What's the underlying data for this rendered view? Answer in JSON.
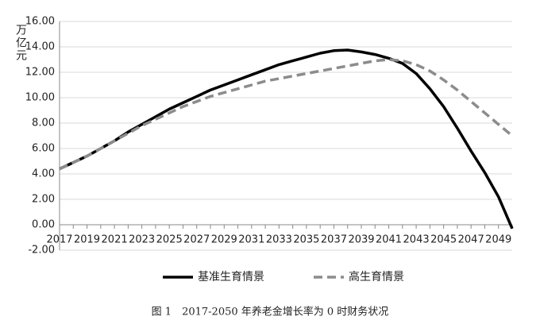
{
  "chart_data": {
    "type": "line",
    "y_label": "万亿元",
    "caption": "图 1　2017-2050 年养老金增长率为 0 时财务状况",
    "categories": [
      "2017",
      null,
      "2019",
      null,
      "2021",
      null,
      "2023",
      null,
      "2025",
      null,
      "2027",
      null,
      "2029",
      null,
      "2031",
      null,
      "2033",
      null,
      "2035",
      null,
      "2037",
      null,
      "2039",
      null,
      "2041",
      null,
      "2043",
      null,
      "2045",
      null,
      "2047",
      null,
      "2049",
      null
    ],
    "series": [
      {
        "name": "基准生育情景",
        "color": "#000000",
        "dash": false,
        "values": [
          4.4,
          4.9,
          5.4,
          6.0,
          6.6,
          7.3,
          7.9,
          8.5,
          9.1,
          9.6,
          10.1,
          10.6,
          11.0,
          11.4,
          11.8,
          12.2,
          12.6,
          12.9,
          13.2,
          13.5,
          13.7,
          13.75,
          13.6,
          13.4,
          13.1,
          12.7,
          11.9,
          10.7,
          9.3,
          7.6,
          5.8,
          4.1,
          2.2,
          -0.3
        ]
      },
      {
        "name": "高生育情景",
        "color": "#8c8c8c",
        "dash": true,
        "values": [
          4.4,
          4.9,
          5.4,
          6.0,
          6.6,
          7.2,
          7.8,
          8.3,
          8.8,
          9.3,
          9.7,
          10.1,
          10.4,
          10.7,
          11.0,
          11.3,
          11.5,
          11.7,
          11.9,
          12.1,
          12.3,
          12.5,
          12.7,
          12.9,
          13.0,
          12.9,
          12.6,
          12.1,
          11.4,
          10.6,
          9.7,
          8.8,
          7.9,
          7.0
        ]
      }
    ],
    "ylim": [
      -2,
      16
    ],
    "yticks": [
      {
        "value": -2,
        "label": "-2.00"
      },
      {
        "value": 0,
        "label": "0.00"
      },
      {
        "value": 2,
        "label": "2.00"
      },
      {
        "value": 4,
        "label": "4.00"
      },
      {
        "value": 6,
        "label": "6.00"
      },
      {
        "value": 8,
        "label": "8.00"
      },
      {
        "value": 10,
        "label": "10.00"
      },
      {
        "value": 12,
        "label": "12.00"
      },
      {
        "value": 14,
        "label": "14.00"
      },
      {
        "value": 16,
        "label": "16.00"
      }
    ],
    "grid": true,
    "legend": "bottom"
  }
}
